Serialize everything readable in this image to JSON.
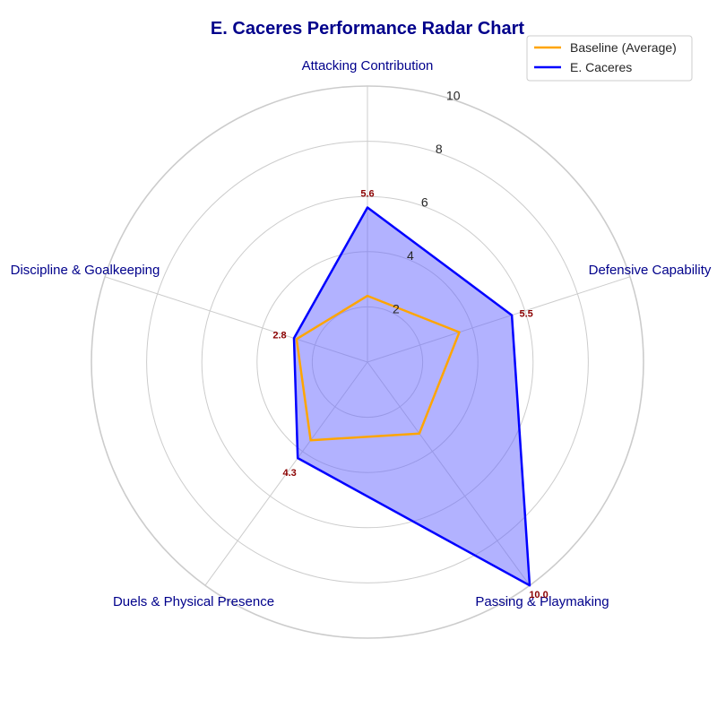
{
  "chart_data": {
    "type": "radar",
    "title": "E. Caceres Performance Radar Chart",
    "categories": [
      "Attacking Contribution",
      "Defensive Capability",
      "Passing & Playmaking",
      "Duels & Physical Presence",
      "Discipline & Goalkeeping"
    ],
    "rlim": [
      0,
      10
    ],
    "rticks": [
      "2",
      "4",
      "6",
      "8",
      "10"
    ],
    "grid": true,
    "legend_position": "top-right",
    "series": [
      {
        "name": "Baseline (Average)",
        "values": [
          2.4,
          3.5,
          3.2,
          3.5,
          2.7
        ],
        "color": "#FFA500",
        "fill": false
      },
      {
        "name": "E. Caceres",
        "values": [
          5.6,
          5.5,
          10.0,
          4.3,
          2.8
        ],
        "color": "#0000FF",
        "fill": true,
        "fill_color": "#6666FF"
      }
    ],
    "data_labels": [
      "5.6",
      "5.5",
      "10.0",
      "4.3",
      "2.8"
    ],
    "data_label_color": "#8B0000",
    "title_color": "#00008B",
    "axis_label_color": "#00008B"
  }
}
